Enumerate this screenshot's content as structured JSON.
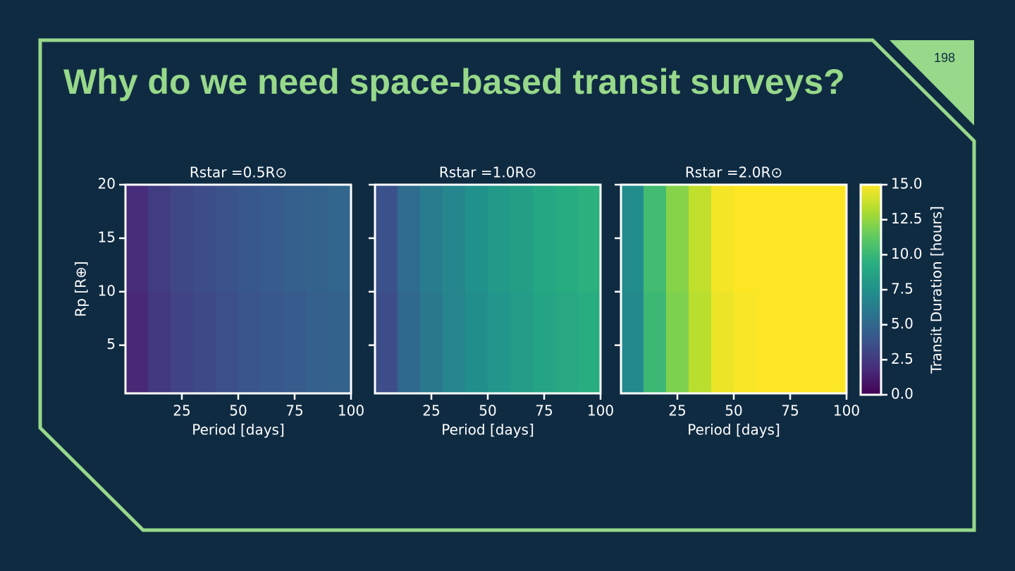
{
  "slide": {
    "title": "Why do we need space-based transit surveys?",
    "page_number": "198"
  },
  "chart_data": [
    {
      "type": "heatmap",
      "title": "Rstar =0.5R⊙",
      "xlabel": "Period [days]",
      "ylabel": "Rp [R⊕]",
      "show_ytick_labels": true,
      "xlim": [
        0,
        100
      ],
      "xticks": [
        25,
        50,
        75,
        100
      ],
      "ylim": [
        0.5,
        20
      ],
      "yticks": [
        5,
        10,
        15,
        20
      ],
      "xbins": [
        0,
        10,
        20,
        30,
        40,
        50,
        60,
        70,
        80,
        90,
        100
      ],
      "ybins": [
        0.5,
        10,
        20
      ],
      "z": [
        [
          1.7,
          2.5,
          3.0,
          3.3,
          3.6,
          3.9,
          4.1,
          4.3,
          4.5,
          4.7
        ],
        [
          1.9,
          2.7,
          3.2,
          3.5,
          3.8,
          4.1,
          4.3,
          4.5,
          4.7,
          4.9
        ]
      ]
    },
    {
      "type": "heatmap",
      "title": "Rstar =1.0R⊙",
      "xlabel": "Period [days]",
      "show_ytick_labels": false,
      "xlim": [
        0,
        100
      ],
      "xticks": [
        25,
        50,
        75,
        100
      ],
      "ylim": [
        0.5,
        20
      ],
      "yticks": [
        5,
        10,
        15,
        20
      ],
      "xbins": [
        0,
        10,
        20,
        30,
        40,
        50,
        60,
        70,
        80,
        90,
        100
      ],
      "ybins": [
        0.5,
        10,
        20
      ],
      "z": [
        [
          3.5,
          5.1,
          6.0,
          6.7,
          7.3,
          7.8,
          8.2,
          8.7,
          9.0,
          9.3
        ],
        [
          3.7,
          5.3,
          6.2,
          6.9,
          7.5,
          8.0,
          8.4,
          8.9,
          9.2,
          9.5
        ]
      ]
    },
    {
      "type": "heatmap",
      "title": "Rstar =2.0R⊙",
      "xlabel": "Period [days]",
      "show_ytick_labels": false,
      "xlim": [
        0,
        100
      ],
      "xticks": [
        25,
        50,
        75,
        100
      ],
      "ylim": [
        0.5,
        20
      ],
      "yticks": [
        5,
        10,
        15,
        20
      ],
      "xbins": [
        0,
        10,
        20,
        30,
        40,
        50,
        60,
        70,
        80,
        90,
        100
      ],
      "ybins": [
        0.5,
        10,
        20
      ],
      "z": [
        [
          7.0,
          10.1,
          12.0,
          13.4,
          14.6,
          14.9,
          15,
          15,
          15,
          15
        ],
        [
          7.2,
          10.3,
          12.2,
          13.6,
          14.8,
          15,
          15,
          15,
          15,
          15
        ]
      ]
    }
  ],
  "colorbar": {
    "label": "Transit Duration [hours]",
    "colormap": "viridis",
    "lim": [
      0,
      15
    ],
    "ticks": [
      {
        "value": 0,
        "label": "0.0"
      },
      {
        "value": 2.5,
        "label": "2.5"
      },
      {
        "value": 5,
        "label": "5.0"
      },
      {
        "value": 7.5,
        "label": "7.5"
      },
      {
        "value": 10,
        "label": "10.0"
      },
      {
        "value": 12.5,
        "label": "12.5"
      },
      {
        "value": 15,
        "label": "15.0"
      }
    ]
  }
}
